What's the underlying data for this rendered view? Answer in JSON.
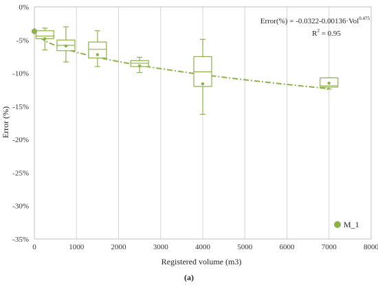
{
  "colors": {
    "accent": "#8cb04a",
    "grid": "#d3d3d3",
    "frame": "#bfbfbf"
  },
  "chart_data": {
    "type": "box",
    "xlabel": "Registered volume (m3)",
    "ylabel": "Error (%)",
    "xlim": [
      0,
      8000
    ],
    "ylim": [
      -35,
      0
    ],
    "xticks": [
      0,
      1000,
      2000,
      3000,
      4000,
      5000,
      6000,
      7000,
      8000
    ],
    "yticks": [
      0,
      -5,
      -10,
      -15,
      -20,
      -25,
      -30,
      -35
    ],
    "ytick_labels": [
      "0%",
      "-5%",
      "-10%",
      "-15%",
      "-20%",
      "-25%",
      "-30%",
      "-35%"
    ],
    "grid": "vertical",
    "caption": "(a)",
    "equation": {
      "prefix": "Error(%) = -0.0322-0.00136·Vol",
      "exponent": "0.475",
      "r2_prefix": "R",
      "r2_exp": "2",
      "r2_value": " = 0.95"
    },
    "trend": {
      "a": -0.0322,
      "b": -0.00136,
      "c": 0.475,
      "x_range": [
        0,
        7000
      ],
      "style": "dash-dot"
    },
    "series": [
      {
        "name": "M_1",
        "boxes": [
          {
            "x": 250,
            "whisker_low": -6.5,
            "q1": -4.8,
            "median": -4.4,
            "q3": -3.6,
            "whisker_high": -3.2,
            "mean": -4.8
          },
          {
            "x": 750,
            "whisker_low": -8.3,
            "q1": -6.6,
            "median": -5.8,
            "q3": -5.0,
            "whisker_high": -3.0,
            "mean": -5.9
          },
          {
            "x": 1500,
            "whisker_low": -9.0,
            "q1": -7.7,
            "median": -6.4,
            "q3": -5.3,
            "whisker_high": -3.6,
            "mean": -7.2
          },
          {
            "x": 2500,
            "whisker_low": -9.9,
            "q1": -9.0,
            "median": -8.5,
            "q3": -8.1,
            "whisker_high": -7.6,
            "mean": -8.9
          },
          {
            "x": 4000,
            "whisker_low": -16.2,
            "q1": -12.0,
            "median": -9.8,
            "q3": -7.5,
            "whisker_high": -4.9,
            "mean": -11.6
          },
          {
            "x": 7000,
            "whisker_low": -12.4,
            "q1": -12.1,
            "median": -11.9,
            "q3": -10.7,
            "whisker_high": -10.7,
            "mean": -11.5
          }
        ],
        "points": [
          {
            "x": 0,
            "y": -3.7
          }
        ]
      }
    ]
  }
}
